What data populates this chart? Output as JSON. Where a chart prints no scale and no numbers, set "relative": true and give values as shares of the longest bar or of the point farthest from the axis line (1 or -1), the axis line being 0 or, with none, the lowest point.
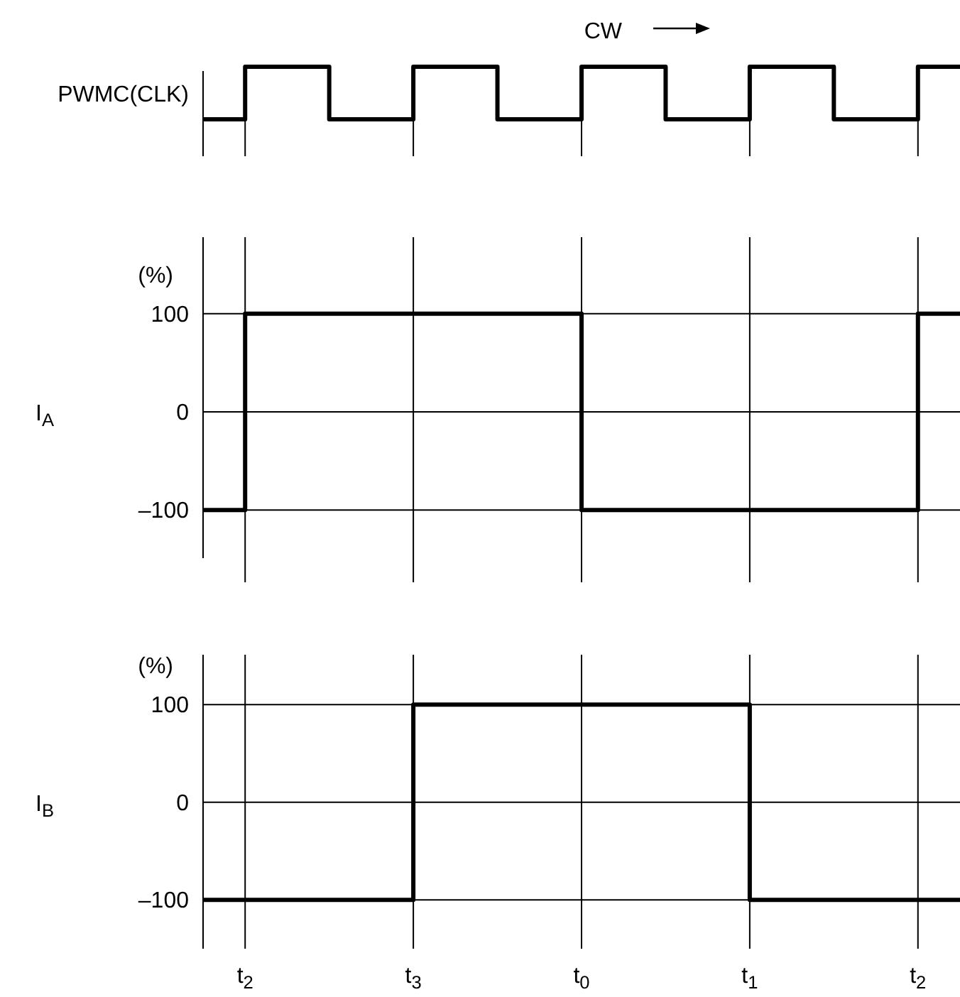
{
  "chart_data": [
    {
      "type": "step",
      "ylabel": "PWMC(CLK)",
      "relative": true,
      "categories": [
        null,
        null,
        null,
        null,
        null,
        null,
        null,
        null,
        null,
        null,
        null,
        null,
        null,
        null,
        null,
        null,
        null,
        null,
        null
      ],
      "tick_labels": false,
      "grid": "x",
      "annotations": [
        "CW"
      ],
      "series": [
        {
          "color": "#000000",
          "values": [
            0,
            1,
            1,
            0,
            0,
            1,
            1,
            0,
            0,
            1,
            1,
            0,
            0,
            1,
            1,
            0,
            0,
            1,
            1
          ]
        }
      ]
    },
    {
      "type": "step",
      "ylabel": "I$_{A}$",
      "categories": [
        null,
        null,
        null,
        null,
        null,
        null,
        null,
        null,
        null,
        null,
        null,
        null,
        null,
        null,
        null,
        null,
        null,
        null,
        null
      ],
      "ylim": [
        -149,
        178
      ],
      "yticks": [
        {
          "value": 100,
          "label": "100"
        },
        {
          "value": 0,
          "label": "0"
        },
        {
          "value": -100,
          "label": "–100"
        }
      ],
      "tick_labels": "y",
      "grid": true,
      "annotations": [
        "(%)"
      ],
      "series": [
        {
          "color": "#000000",
          "values": [
            -100,
            100,
            100,
            100,
            100,
            100,
            100,
            100,
            100,
            -100,
            -100,
            -100,
            -100,
            -100,
            -100,
            -100,
            -100,
            100,
            100
          ]
        }
      ]
    },
    {
      "type": "step",
      "ylabel": "I$_{B}$",
      "categories": [
        null,
        "t$_{2}$",
        null,
        null,
        null,
        "t$_{3}$",
        null,
        null,
        null,
        "t$_{0}$",
        null,
        null,
        null,
        "t$_{1}$",
        null,
        null,
        null,
        "t$_{2}$",
        null
      ],
      "ylim": [
        -150,
        151
      ],
      "yticks": [
        {
          "value": 100,
          "label": "100"
        },
        {
          "value": 0,
          "label": "0"
        },
        {
          "value": -100,
          "label": "–100"
        }
      ],
      "grid": true,
      "annotations": [
        "(%)"
      ],
      "series": [
        {
          "color": "#000000",
          "values": [
            -100,
            -100,
            -100,
            -100,
            -100,
            100,
            100,
            100,
            100,
            100,
            100,
            100,
            100,
            -100,
            -100,
            -100,
            -100,
            -100,
            -100
          ]
        }
      ]
    }
  ]
}
